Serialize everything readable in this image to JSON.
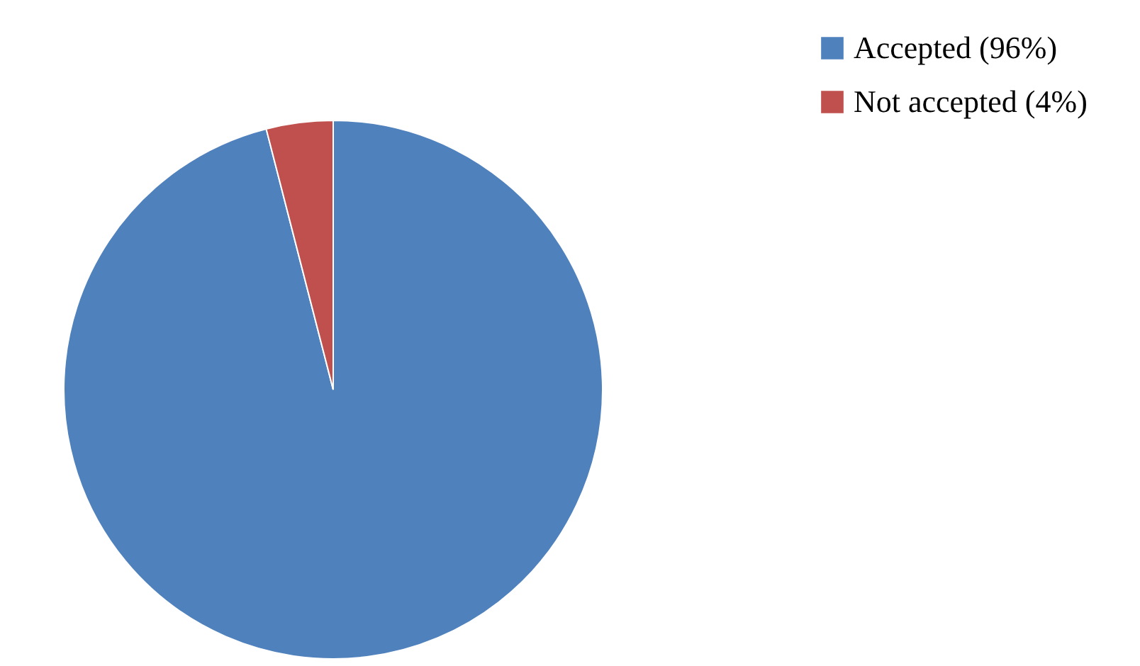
{
  "chart_data": {
    "type": "pie",
    "categories": [
      "Accepted (96%)",
      "Not accepted (4%)"
    ],
    "values": [
      96,
      4
    ],
    "colors": [
      "#4f81bd",
      "#c0504d"
    ],
    "legend": "top right"
  }
}
